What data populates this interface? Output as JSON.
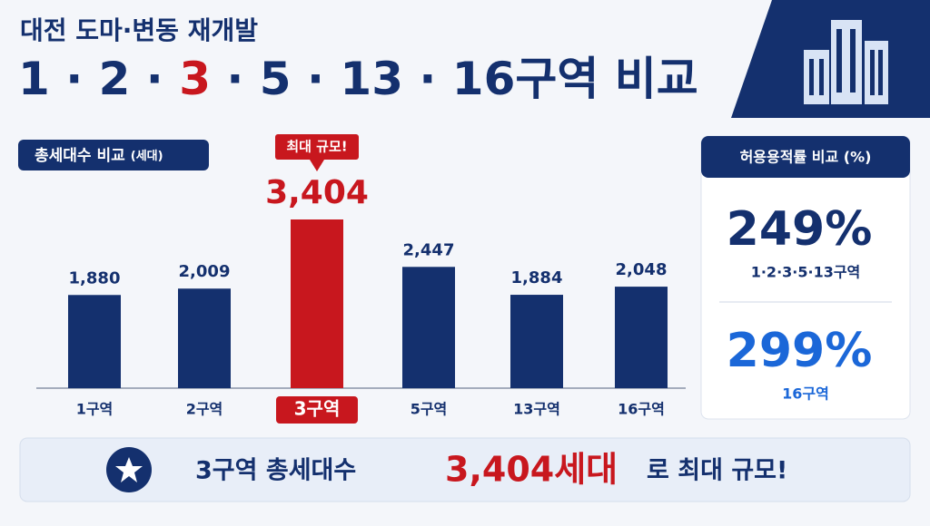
{
  "header": {
    "title": "대전 도마·변동 재개발",
    "subtitle_parts": [
      "1 · 2 · ",
      "3",
      " · 5 · 13 · 16구역 비교"
    ]
  },
  "chart_data": {
    "type": "bar",
    "title": "총세대수 비교",
    "unit": "(세대)",
    "categories": [
      "1구역",
      "2구역",
      "3구역",
      "5구역",
      "13구역",
      "16구역"
    ],
    "values": [
      1880,
      2009,
      3404,
      2447,
      1884,
      2048
    ],
    "value_labels": [
      "1,880",
      "2,009",
      "3,404",
      "2,447",
      "1,884",
      "2,048"
    ],
    "colors": [
      "#14306e",
      "#14306e",
      "#c8171e",
      "#14306e",
      "#14306e",
      "#14306e"
    ],
    "annotation": "최대 규모!"
  },
  "side_panel": {
    "title": "허용용적률 비교 (%)",
    "items": [
      {
        "value": "249%",
        "label": "1·2·3·5·13구역",
        "color": "#14306e"
      },
      {
        "value": "299%",
        "label": "16구역",
        "color": "#1b67d8"
      }
    ]
  },
  "banner": {
    "lead": "3구역 총세대수",
    "highlight": "3,404세대",
    "tail": "로 최대 규모!"
  }
}
